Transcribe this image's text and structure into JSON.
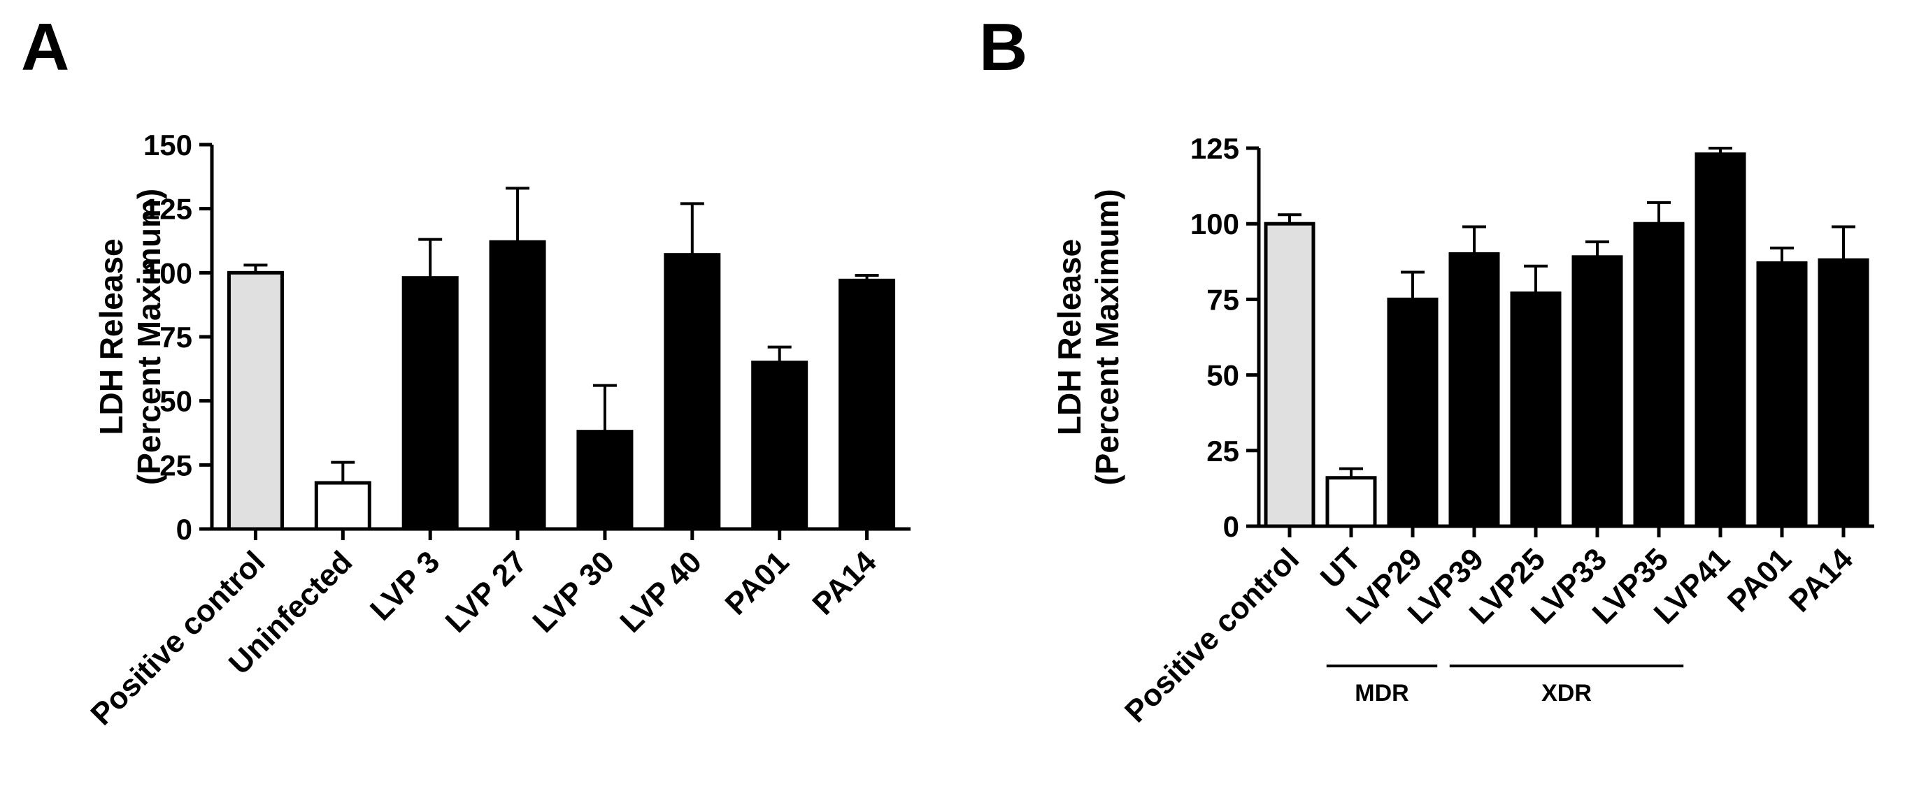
{
  "chart_data": [
    {
      "type": "bar",
      "panel_label": "A",
      "ylabel_line1": "LDH Release",
      "ylabel_line2": "(Percent Maximum)",
      "xlabel": "",
      "ylim": [
        0,
        150
      ],
      "yticks": [
        0,
        25,
        50,
        75,
        100,
        125,
        150
      ],
      "categories": [
        "Positive control",
        "Uninfected",
        "LVP 3",
        "LVP 27",
        "LVP 30",
        "LVP 40",
        "PA01",
        "PA14"
      ],
      "values": [
        100,
        18,
        98,
        112,
        38,
        107,
        65,
        97
      ],
      "errors": [
        3,
        8,
        15,
        21,
        18,
        20,
        6,
        2
      ],
      "bar_colors": [
        "#e0e0e0",
        "#ffffff",
        "#000000",
        "#000000",
        "#000000",
        "#000000",
        "#000000",
        "#000000"
      ],
      "grid": false
    },
    {
      "type": "bar",
      "panel_label": "B",
      "ylabel_line1": "LDH Release",
      "ylabel_line2": "(Percent Maximum)",
      "xlabel": "",
      "ylim": [
        0,
        125
      ],
      "yticks": [
        0,
        25,
        50,
        75,
        100,
        125
      ],
      "categories": [
        "Positive control",
        "UT",
        "LVP29",
        "LVP39",
        "LVP25",
        "LVP33",
        "LVP35",
        "LVP41",
        "PA01",
        "PA14"
      ],
      "values": [
        100,
        16,
        75,
        90,
        77,
        89,
        100,
        123,
        87,
        88
      ],
      "errors": [
        3,
        3,
        9,
        9,
        9,
        5,
        7,
        2,
        5,
        11
      ],
      "bar_colors": [
        "#e0e0e0",
        "#ffffff",
        "#000000",
        "#000000",
        "#000000",
        "#000000",
        "#000000",
        "#000000",
        "#000000",
        "#000000"
      ],
      "groups": [
        {
          "label": "MDR",
          "from": 1,
          "to": 2
        },
        {
          "label": "XDR",
          "from": 3,
          "to": 6
        }
      ],
      "grid": false
    }
  ]
}
